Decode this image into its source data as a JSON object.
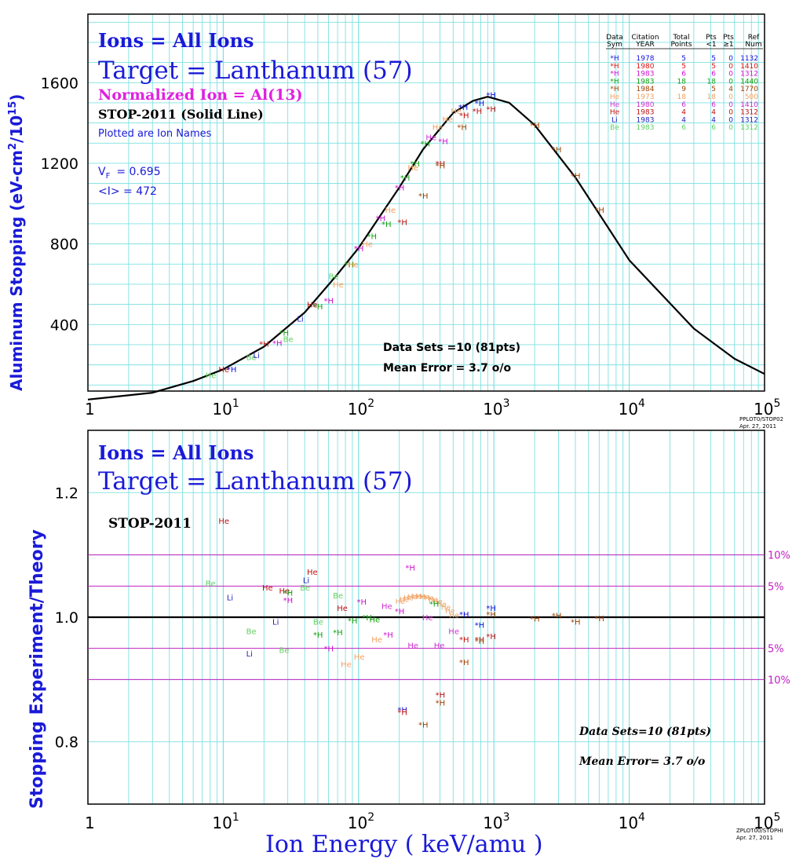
{
  "chart_data": [
    {
      "type": "scatter",
      "panel": "top",
      "title_lines": [
        "Ions = All Ions",
        "Target = Lanthanum (57)"
      ],
      "normalized_ion": "Normalized Ion = Al(13)",
      "theory_label": "STOP-2011 (Solid Line)",
      "plotted_note": "Plotted are Ion Names",
      "vf_label": "V",
      "vf_sub": "F",
      "vf_value": "= 0.695",
      "i_label": "<I> = 472",
      "ylabel": "Aluminum Stopping (eV-cm²/10¹⁵)",
      "ylabel_parts": [
        "Aluminum Stopping (eV-cm",
        "2",
        "/10",
        "15",
        ")"
      ],
      "x_scale": "log",
      "xlim": [
        1,
        100000
      ],
      "ylim": [
        70,
        1940
      ],
      "y_ticks": [
        400,
        800,
        1200,
        1600
      ],
      "x_ticks": [
        {
          "value": 1,
          "base": "1",
          "exp": ""
        },
        {
          "value": 10,
          "base": "10",
          "exp": "1"
        },
        {
          "value": 100,
          "base": "10",
          "exp": "2"
        },
        {
          "value": 1000,
          "base": "10",
          "exp": "3"
        },
        {
          "value": 10000,
          "base": "10",
          "exp": "4"
        },
        {
          "value": 100000,
          "base": "10",
          "exp": "5"
        }
      ],
      "grid": true,
      "data_sets_label": "Data Sets =10 (81pts)",
      "mean_error_label": "Mean Error = 3.7 o/o",
      "corner_code": [
        "PPLOT0/STOP02",
        "Apr. 27, 2011"
      ],
      "legend": {
        "headers": [
          [
            "Data",
            "Sym"
          ],
          [
            "Citation",
            "YEAR"
          ],
          [
            "Total",
            "Points"
          ],
          [
            "Pts",
            "<1"
          ],
          [
            "Pts",
            "≥1"
          ],
          [
            "Ref",
            "Num"
          ]
        ],
        "rows": [
          {
            "sym": "*H",
            "year": "1978",
            "total": "5",
            "lt1": "5",
            "ge1": "0",
            "ref": "1132",
            "color": "#1010e0"
          },
          {
            "sym": "*H",
            "year": "1980",
            "total": "5",
            "lt1": "5",
            "ge1": "0",
            "ref": "1410",
            "color": "#e01010"
          },
          {
            "sym": "*H",
            "year": "1983",
            "total": "6",
            "lt1": "6",
            "ge1": "0",
            "ref": "1312",
            "color": "#d010d0"
          },
          {
            "sym": "*H",
            "year": "1983",
            "total": "18",
            "lt1": "18",
            "ge1": "0",
            "ref": "1440",
            "color": "#10a010"
          },
          {
            "sym": "*H",
            "year": "1984",
            "total": "9",
            "lt1": "5",
            "ge1": "4",
            "ref": "1770",
            "color": "#a04000"
          },
          {
            "sym": "He",
            "year": "1973",
            "total": "18",
            "lt1": "18",
            "ge1": "0",
            "ref": "500",
            "color": "#f0a060"
          },
          {
            "sym": "He",
            "year": "1980",
            "total": "6",
            "lt1": "6",
            "ge1": "0",
            "ref": "1410",
            "color": "#d030d0"
          },
          {
            "sym": "He",
            "year": "1983",
            "total": "4",
            "lt1": "4",
            "ge1": "0",
            "ref": "1312",
            "color": "#c01010"
          },
          {
            "sym": "Li",
            "year": "1983",
            "total": "4",
            "lt1": "4",
            "ge1": "0",
            "ref": "1312",
            "color": "#2020c0"
          },
          {
            "sym": "Be",
            "year": "1983",
            "total": "6",
            "lt1": "6",
            "ge1": "0",
            "ref": "1312",
            "color": "#60d060"
          }
        ]
      },
      "theory_curve": [
        [
          1,
          28
        ],
        [
          3,
          62
        ],
        [
          6,
          120
        ],
        [
          10,
          178
        ],
        [
          20,
          290
        ],
        [
          40,
          460
        ],
        [
          70,
          650
        ],
        [
          100,
          780
        ],
        [
          200,
          1080
        ],
        [
          300,
          1270
        ],
        [
          500,
          1450
        ],
        [
          700,
          1510
        ],
        [
          900,
          1530
        ],
        [
          1300,
          1500
        ],
        [
          2000,
          1390
        ],
        [
          4000,
          1130
        ],
        [
          7000,
          880
        ],
        [
          10000,
          720
        ],
        [
          30000,
          380
        ],
        [
          60000,
          230
        ],
        [
          100000,
          155
        ]
      ],
      "points": [
        {
          "l": "He",
          "x": 8,
          "y": 150,
          "c": "#60d060"
        },
        {
          "l": "He",
          "x": 10,
          "y": 180,
          "c": "#c01010"
        },
        {
          "l": "H",
          "x": 11.5,
          "y": 180,
          "c": "#1010e0"
        },
        {
          "l": "Be",
          "x": 16,
          "y": 240,
          "c": "#60d060"
        },
        {
          "l": "Li",
          "x": 18,
          "y": 250,
          "c": "#2020c0"
        },
        {
          "l": "H",
          "x": 20,
          "y": 305,
          "c": "#c01010"
        },
        {
          "l": "H",
          "x": 25,
          "y": 310,
          "c": "#d010d0"
        },
        {
          "l": "H",
          "x": 28,
          "y": 360,
          "c": "#10a010"
        },
        {
          "l": "Be",
          "x": 30,
          "y": 330,
          "c": "#60d060"
        },
        {
          "l": "Li",
          "x": 38,
          "y": 430,
          "c": "#2020c0"
        },
        {
          "l": "He",
          "x": 45,
          "y": 500,
          "c": "#c01010"
        },
        {
          "l": "H",
          "x": 50,
          "y": 490,
          "c": "#10a010"
        },
        {
          "l": "H",
          "x": 60,
          "y": 520,
          "c": "#d010d0"
        },
        {
          "l": "He",
          "x": 70,
          "y": 600,
          "c": "#f0a060"
        },
        {
          "l": "Be",
          "x": 65,
          "y": 640,
          "c": "#60d060"
        },
        {
          "l": "H",
          "x": 85,
          "y": 700,
          "c": "#10a010"
        },
        {
          "l": "He",
          "x": 90,
          "y": 700,
          "c": "#f0a060"
        },
        {
          "l": "H",
          "x": 100,
          "y": 780,
          "c": "#d010d0"
        },
        {
          "l": "He",
          "x": 115,
          "y": 800,
          "c": "#f0a060"
        },
        {
          "l": "H",
          "x": 125,
          "y": 840,
          "c": "#10a010"
        },
        {
          "l": "H",
          "x": 145,
          "y": 930,
          "c": "#d010d0"
        },
        {
          "l": "H",
          "x": 160,
          "y": 900,
          "c": "#10a010"
        },
        {
          "l": "He",
          "x": 170,
          "y": 970,
          "c": "#f0a060"
        },
        {
          "l": "H",
          "x": 200,
          "y": 1080,
          "c": "#d010d0"
        },
        {
          "l": "H",
          "x": 210,
          "y": 910,
          "c": "#c01010"
        },
        {
          "l": "H",
          "x": 220,
          "y": 1130,
          "c": "#10a010"
        },
        {
          "l": "He",
          "x": 250,
          "y": 1180,
          "c": "#f0a060"
        },
        {
          "l": "H",
          "x": 260,
          "y": 1200,
          "c": "#10a010"
        },
        {
          "l": "H",
          "x": 300,
          "y": 1040,
          "c": "#a04000"
        },
        {
          "l": "H",
          "x": 310,
          "y": 1300,
          "c": "#10a010"
        },
        {
          "l": "He",
          "x": 340,
          "y": 1330,
          "c": "#d030d0"
        },
        {
          "l": "He",
          "x": 380,
          "y": 1380,
          "c": "#f0a060"
        },
        {
          "l": "H",
          "x": 400,
          "y": 1200,
          "c": "#c01010"
        },
        {
          "l": "H",
          "x": 400,
          "y": 1190,
          "c": "#a04000"
        },
        {
          "l": "H",
          "x": 420,
          "y": 1310,
          "c": "#d010d0"
        },
        {
          "l": "He",
          "x": 450,
          "y": 1420,
          "c": "#f0a060"
        },
        {
          "l": "He",
          "x": 520,
          "y": 1460,
          "c": "#f0a060"
        },
        {
          "l": "H",
          "x": 580,
          "y": 1380,
          "c": "#a04000"
        },
        {
          "l": "H",
          "x": 590,
          "y": 1480,
          "c": "#1010e0"
        },
        {
          "l": "H",
          "x": 600,
          "y": 1440,
          "c": "#c01010"
        },
        {
          "l": "H",
          "x": 750,
          "y": 1460,
          "c": "#c01010"
        },
        {
          "l": "H",
          "x": 780,
          "y": 1500,
          "c": "#1010e0"
        },
        {
          "l": "H",
          "x": 950,
          "y": 1470,
          "c": "#c01010"
        },
        {
          "l": "H",
          "x": 950,
          "y": 1540,
          "c": "#1010e0"
        },
        {
          "l": "H",
          "x": 2000,
          "y": 1390,
          "c": "#a04000"
        },
        {
          "l": "H",
          "x": 2900,
          "y": 1270,
          "c": "#a04000"
        },
        {
          "l": "H",
          "x": 4000,
          "y": 1140,
          "c": "#a04000"
        },
        {
          "l": "H",
          "x": 6000,
          "y": 970,
          "c": "#a04000"
        }
      ]
    },
    {
      "type": "scatter",
      "panel": "bottom",
      "title_lines": [
        "Ions = All Ions",
        "Target = Lanthanum (57)"
      ],
      "theory_label": "STOP-2011",
      "ylabel": "Stopping Experiment/Theory",
      "xlabel": "Ion Energy ( keV/amu )",
      "x_scale": "log",
      "xlim": [
        1,
        100000
      ],
      "ylim": [
        0.7,
        1.3
      ],
      "y_ticks": [
        0.8,
        1.0,
        1.2
      ],
      "y_tick_labels": [
        "0.8",
        "1.0",
        "1.2"
      ],
      "x_ticks": [
        {
          "value": 1,
          "base": "1",
          "exp": ""
        },
        {
          "value": 10,
          "base": "10",
          "exp": "1"
        },
        {
          "value": 100,
          "base": "10",
          "exp": "2"
        },
        {
          "value": 1000,
          "base": "10",
          "exp": "3"
        },
        {
          "value": 10000,
          "base": "10",
          "exp": "4"
        },
        {
          "value": 100000,
          "base": "10",
          "exp": "5"
        }
      ],
      "grid": true,
      "ref_lines": [
        {
          "y": 1.1,
          "label": "10%"
        },
        {
          "y": 1.05,
          "label": "5%"
        },
        {
          "y": 0.95,
          "label": "5%"
        },
        {
          "y": 0.9,
          "label": "10%"
        }
      ],
      "data_sets_label": "Data Sets=10 (81pts)",
      "mean_error_label": "Mean Error= 3.7 o/o",
      "corner_code": [
        "ZPLOT00/STOPHI",
        "Apr. 27, 2011"
      ],
      "points": [
        {
          "l": "He",
          "x": 10,
          "y": 1.155,
          "c": "#c01010"
        },
        {
          "l": "Be",
          "x": 8,
          "y": 1.055,
          "c": "#60d060"
        },
        {
          "l": "Li",
          "x": 11.5,
          "y": 1.032,
          "c": "#2020c0"
        },
        {
          "l": "He",
          "x": 21,
          "y": 1.048,
          "c": "#c01010"
        },
        {
          "l": "He",
          "x": 28,
          "y": 1.043,
          "c": "#c01010"
        },
        {
          "l": "H",
          "x": 30,
          "y": 1.04,
          "c": "#10a010"
        },
        {
          "l": "H",
          "x": 30,
          "y": 1.028,
          "c": "#d010d0"
        },
        {
          "l": "Li",
          "x": 42,
          "y": 1.06,
          "c": "#2020c0"
        },
        {
          "l": "He",
          "x": 45,
          "y": 1.073,
          "c": "#c01010"
        },
        {
          "l": "Be",
          "x": 40,
          "y": 1.048,
          "c": "#60d060"
        },
        {
          "l": "Be",
          "x": 16,
          "y": 0.978,
          "c": "#60d060"
        },
        {
          "l": "Li",
          "x": 16,
          "y": 0.942,
          "c": "#2020c0"
        },
        {
          "l": "Be",
          "x": 28,
          "y": 0.948,
          "c": "#60d060"
        },
        {
          "l": "Li",
          "x": 25,
          "y": 0.993,
          "c": "#2020c0"
        },
        {
          "l": "Be",
          "x": 50,
          "y": 0.993,
          "c": "#60d060"
        },
        {
          "l": "H",
          "x": 50,
          "y": 0.972,
          "c": "#10a010"
        },
        {
          "l": "H",
          "x": 70,
          "y": 0.976,
          "c": "#10a010"
        },
        {
          "l": "Be",
          "x": 70,
          "y": 1.035,
          "c": "#60d060"
        },
        {
          "l": "He",
          "x": 75,
          "y": 1.015,
          "c": "#c01010"
        },
        {
          "l": "H",
          "x": 90,
          "y": 0.995,
          "c": "#10a010"
        },
        {
          "l": "H",
          "x": 105,
          "y": 1.025,
          "c": "#d010d0"
        },
        {
          "l": "H",
          "x": 60,
          "y": 0.95,
          "c": "#d010d0"
        },
        {
          "l": "He",
          "x": 100,
          "y": 0.937,
          "c": "#f0a060"
        },
        {
          "l": "He",
          "x": 80,
          "y": 0.925,
          "c": "#f0a060"
        },
        {
          "l": "H",
          "x": 115,
          "y": 1.0,
          "c": "#10a010"
        },
        {
          "l": "He",
          "x": 130,
          "y": 0.997,
          "c": "#10a010"
        },
        {
          "l": "He",
          "x": 135,
          "y": 0.965,
          "c": "#f0a060"
        },
        {
          "l": "He",
          "x": 160,
          "y": 1.018,
          "c": "#d030d0"
        },
        {
          "l": "H",
          "x": 165,
          "y": 0.972,
          "c": "#d010d0"
        },
        {
          "l": "H",
          "x": 200,
          "y": 1.01,
          "c": "#d010d0"
        },
        {
          "l": "H",
          "x": 240,
          "y": 1.08,
          "c": "#d010d0"
        },
        {
          "l": "He",
          "x": 250,
          "y": 0.955,
          "c": "#d030d0"
        },
        {
          "l": "H",
          "x": 210,
          "y": 0.852,
          "c": "#1010e0"
        },
        {
          "l": "H",
          "x": 210,
          "y": 0.848,
          "c": "#c01010"
        },
        {
          "l": "H",
          "x": 300,
          "y": 0.828,
          "c": "#a04000"
        },
        {
          "l": "He",
          "x": 320,
          "y": 1.0,
          "c": "#d030d0"
        },
        {
          "l": "H",
          "x": 360,
          "y": 1.022,
          "c": "#10a010"
        },
        {
          "l": "He",
          "x": 390,
          "y": 0.955,
          "c": "#d030d0"
        },
        {
          "l": "H",
          "x": 400,
          "y": 0.876,
          "c": "#c01010"
        },
        {
          "l": "H",
          "x": 400,
          "y": 0.863,
          "c": "#a04000"
        },
        {
          "l": "He",
          "x": 500,
          "y": 0.978,
          "c": "#d030d0"
        },
        {
          "l": "H",
          "x": 600,
          "y": 0.965,
          "c": "#c01010"
        },
        {
          "l": "H",
          "x": 600,
          "y": 0.928,
          "c": "#a04000"
        },
        {
          "l": "H",
          "x": 600,
          "y": 1.005,
          "c": "#1010e0"
        },
        {
          "l": "H",
          "x": 780,
          "y": 0.965,
          "c": "#c01010"
        },
        {
          "l": "H",
          "x": 780,
          "y": 0.962,
          "c": "#a04000"
        },
        {
          "l": "H",
          "x": 780,
          "y": 0.988,
          "c": "#1010e0"
        },
        {
          "l": "H",
          "x": 950,
          "y": 0.97,
          "c": "#c01010"
        },
        {
          "l": "H",
          "x": 950,
          "y": 1.015,
          "c": "#1010e0"
        },
        {
          "l": "H",
          "x": 950,
          "y": 1.005,
          "c": "#a04000"
        },
        {
          "l": "H",
          "x": 2000,
          "y": 0.998,
          "c": "#a04000"
        },
        {
          "l": "H",
          "x": 2900,
          "y": 1.003,
          "c": "#a04000"
        },
        {
          "l": "H",
          "x": 4000,
          "y": 0.993,
          "c": "#a04000"
        },
        {
          "l": "H",
          "x": 6000,
          "y": 0.999,
          "c": "#a04000"
        }
      ],
      "hump": {
        "label": "He",
        "color": "#f0a060",
        "x_from": 200,
        "x_to": 500,
        "y_peak": 1.035
      }
    }
  ]
}
